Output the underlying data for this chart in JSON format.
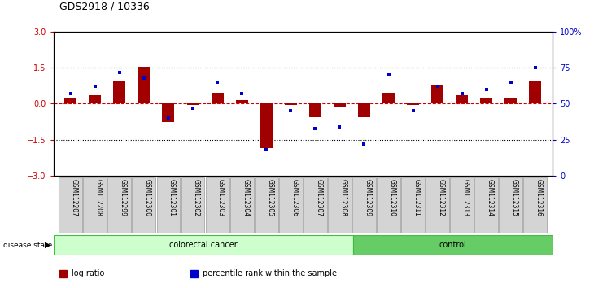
{
  "title": "GDS2918 / 10336",
  "samples": [
    "GSM112207",
    "GSM112208",
    "GSM112299",
    "GSM112300",
    "GSM112301",
    "GSM112302",
    "GSM112303",
    "GSM112304",
    "GSM112305",
    "GSM112306",
    "GSM112307",
    "GSM112308",
    "GSM112309",
    "GSM112310",
    "GSM112311",
    "GSM112312",
    "GSM112313",
    "GSM112314",
    "GSM112315",
    "GSM112316"
  ],
  "log_ratio": [
    0.25,
    0.35,
    0.95,
    1.55,
    -0.75,
    -0.05,
    0.45,
    0.15,
    -1.85,
    -0.05,
    -0.55,
    -0.15,
    -0.55,
    0.45,
    -0.05,
    0.75,
    0.35,
    0.25,
    0.25,
    0.95
  ],
  "percentile_rank": [
    57,
    62,
    72,
    68,
    40,
    47,
    65,
    57,
    18,
    45,
    33,
    34,
    22,
    70,
    45,
    62,
    57,
    60,
    65,
    75
  ],
  "colorectal_cancer_count": 12,
  "control_count": 8,
  "ylim": [
    -3,
    3
  ],
  "yticks_left": [
    -3,
    -1.5,
    0,
    1.5,
    3
  ],
  "yticks_right": [
    0,
    25,
    50,
    75,
    100
  ],
  "bar_color": "#a00000",
  "marker_color": "#0000cc",
  "dotted_line_color": "#000000",
  "zero_line_color": "#cc0000",
  "cancer_fill": "#ccffcc",
  "cancer_edge": "#44bb44",
  "control_fill": "#66cc66",
  "control_edge": "#44bb44",
  "legend_log_ratio": "log ratio",
  "legend_percentile": "percentile rank within the sample"
}
